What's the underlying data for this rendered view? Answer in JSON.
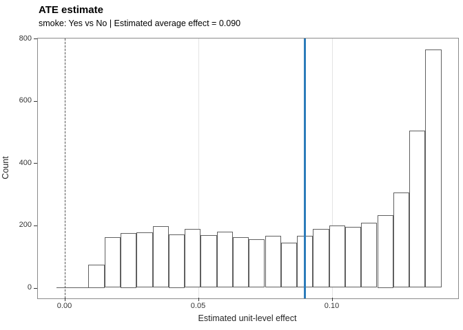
{
  "title": "ATE estimate",
  "subtitle": "smoke: Yes vs No | Estimated average effect = 0.090",
  "chart_data": {
    "type": "bar",
    "subtype": "histogram",
    "title": "ATE estimate",
    "subtitle": "smoke: Yes vs No | Estimated average effect = 0.090",
    "xlabel": "Estimated unit-level effect",
    "ylabel": "Count",
    "x_tick_values": [
      0.0,
      0.05,
      0.1
    ],
    "x_tick_labels": [
      "0.00",
      "0.05",
      "0.10"
    ],
    "y_tick_values": [
      0,
      200,
      400,
      600,
      800
    ],
    "y_tick_labels": [
      "0",
      "200",
      "400",
      "600",
      "800"
    ],
    "xlim": [
      -0.0095,
      0.1477
    ],
    "ylim": [
      0,
      800
    ],
    "grid": "vertical-major-only",
    "legend": "none",
    "bin_start": -0.003,
    "bin_width": 0.006,
    "counts": [
      0,
      0,
      75,
      162,
      176,
      178,
      197,
      171,
      188,
      169,
      179,
      163,
      155,
      166,
      145,
      167,
      189,
      200,
      196,
      209,
      234,
      305,
      505,
      765
    ],
    "bar_fill": "#ffffff",
    "bar_stroke": "#5f5f5f",
    "gridline_color": "#e3e3e3",
    "reference_lines": [
      {
        "x": 0.0,
        "style": "dashed",
        "color": "#555555",
        "label": "zero-effect"
      },
      {
        "x": 0.09,
        "style": "solid",
        "color": "#2b7bba",
        "label": "average-effect"
      }
    ]
  }
}
